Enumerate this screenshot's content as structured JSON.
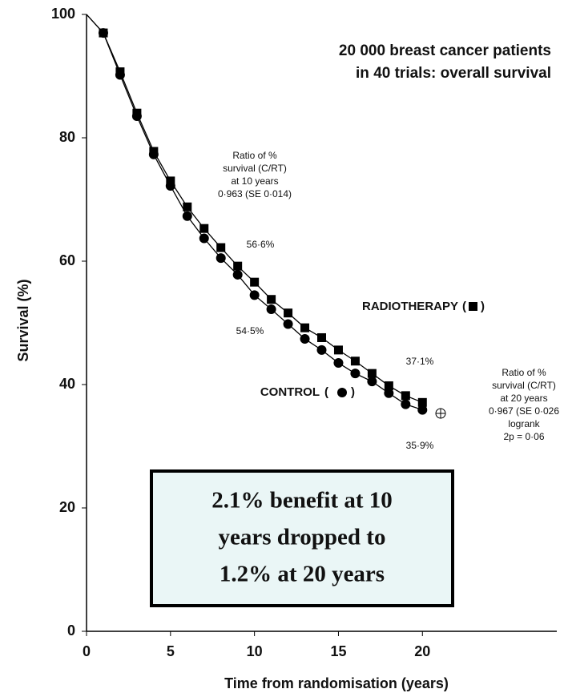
{
  "chart_data": {
    "type": "line",
    "title": [
      "20 000 breast cancer patients",
      "in 40 trials: overall survival"
    ],
    "x_label": "Time from randomisation (years)",
    "y_label": "Survival (%)",
    "x": [
      0,
      1,
      2,
      3,
      4,
      5,
      6,
      7,
      8,
      9,
      10,
      11,
      12,
      13,
      14,
      15,
      16,
      17,
      18,
      19,
      20
    ],
    "series": [
      {
        "name": "RADIOTHERAPY",
        "marker": "square",
        "color": "#000000",
        "values": [
          100,
          97,
          90.7,
          84,
          77.8,
          73,
          68.8,
          65.3,
          62.2,
          59.2,
          56.6,
          53.8,
          51.6,
          49.2,
          47.6,
          45.6,
          43.8,
          41.8,
          39.8,
          38.2,
          37.1
        ]
      },
      {
        "name": "CONTROL",
        "marker": "circle",
        "color": "#000000",
        "values": [
          100,
          97,
          90.2,
          83.5,
          77.3,
          72.2,
          67.3,
          63.7,
          60.5,
          57.8,
          54.5,
          52.2,
          49.8,
          47.4,
          45.6,
          43.5,
          41.8,
          40.5,
          38.6,
          36.8,
          35.9
        ]
      }
    ],
    "xlim": [
      0,
      28
    ],
    "xticks": [
      0,
      5,
      10,
      15,
      20
    ],
    "ylim": [
      0,
      100
    ],
    "yticks": [
      0,
      20,
      40,
      60,
      80,
      100
    ],
    "annotations": {
      "ratio_10": [
        "Ratio of %",
        "survival (C/RT)",
        "at 10 years",
        "0·963 (SE 0·014)"
      ],
      "ratio_20": [
        "Ratio of %",
        "survival (C/RT)",
        "at 20 years",
        "0·967 (SE 0·026",
        "logrank",
        "2p = 0·06"
      ],
      "rt_10": "56·6%",
      "c_10": "54·5%",
      "rt_20": "37·1%",
      "c_20": "35·9%",
      "box": [
        "2.1% benefit at 10",
        "years dropped to",
        "1.2% at 20 years"
      ]
    }
  }
}
